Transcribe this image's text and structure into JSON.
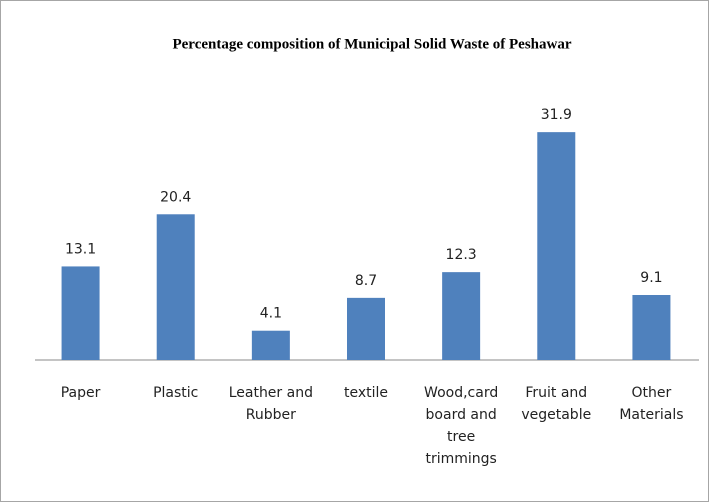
{
  "chart_data": {
    "type": "bar",
    "title": "Percentage composition  of Municipal  Solid Waste of Peshawar",
    "categories": [
      "Paper",
      "Plastic",
      "Leather and Rubber",
      "textile",
      "Wood,card board and tree trimmings",
      "Fruit and vegetable",
      "Other Materials"
    ],
    "values": [
      13.1,
      20.4,
      4.1,
      8.7,
      12.3,
      31.9,
      9.1
    ],
    "color": "#4f81bd",
    "ylim": [
      0,
      35
    ]
  }
}
